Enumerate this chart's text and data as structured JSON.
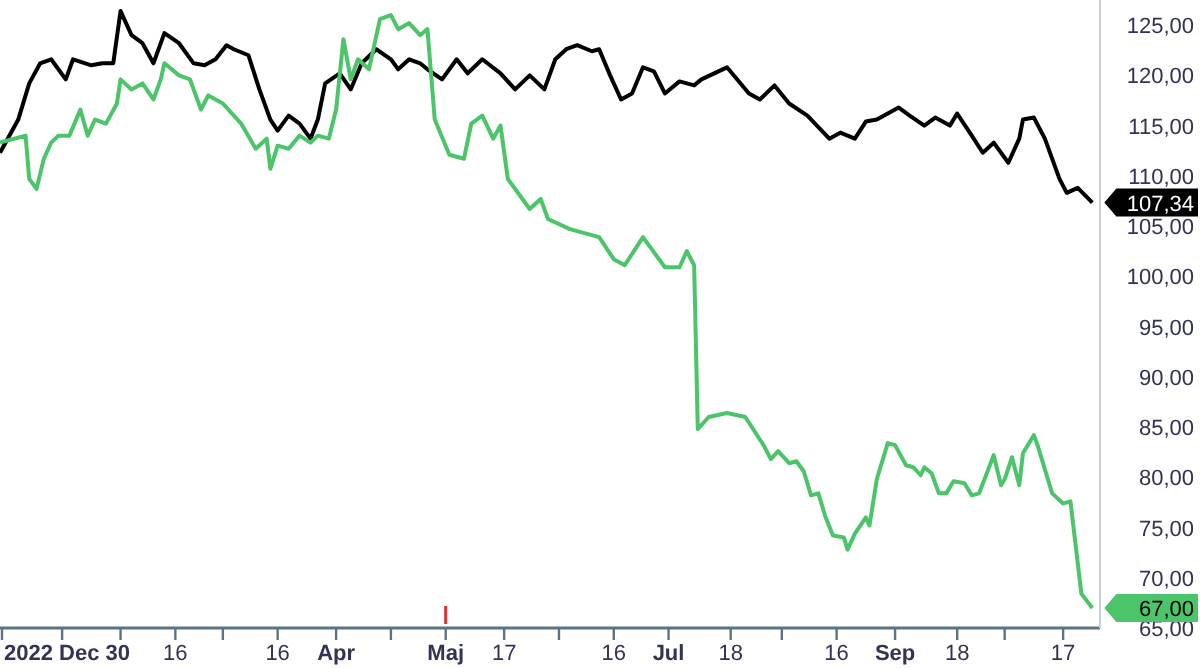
{
  "chart_data": {
    "type": "line",
    "xlim": [
      "2022-12-30",
      "2023-10-26"
    ],
    "ylim": [
      65,
      127.5
    ],
    "xticks": [
      {
        "value": "2022-12-30",
        "label": "2022 Dec 30"
      },
      {
        "value": "2023-01-16",
        "label": null
      },
      {
        "value": "2023-02-01",
        "label": null
      },
      {
        "value": "2023-02-16",
        "label": "16"
      },
      {
        "value": "2023-03-01",
        "label": null
      },
      {
        "value": "2023-03-16",
        "label": "16"
      },
      {
        "value": "2023-04-01",
        "label": "Apr"
      },
      {
        "value": "2023-04-16",
        "label": null
      },
      {
        "value": "2023-05-01",
        "label": "Maj"
      },
      {
        "value": "2023-05-17",
        "label": "17"
      },
      {
        "value": "2023-06-01",
        "label": null
      },
      {
        "value": "2023-06-16",
        "label": "16"
      },
      {
        "value": "2023-07-01",
        "label": "Jul"
      },
      {
        "value": "2023-07-18",
        "label": "18"
      },
      {
        "value": "2023-08-01",
        "label": null
      },
      {
        "value": "2023-08-16",
        "label": "16"
      },
      {
        "value": "2023-09-01",
        "label": "Sep"
      },
      {
        "value": "2023-09-18",
        "label": "18"
      },
      {
        "value": "2023-10-01",
        "label": null
      },
      {
        "value": "2023-10-17",
        "label": "17"
      }
    ],
    "yticks": [
      {
        "value": 65,
        "label": "65,00"
      },
      {
        "value": 70,
        "label": "70,00"
      },
      {
        "value": 75,
        "label": "75,00"
      },
      {
        "value": 80,
        "label": "80,00"
      },
      {
        "value": 85,
        "label": "85,00"
      },
      {
        "value": 90,
        "label": "90,00"
      },
      {
        "value": 95,
        "label": "95,00"
      },
      {
        "value": 100,
        "label": "100,00"
      },
      {
        "value": 105,
        "label": "105,00"
      },
      {
        "value": 110,
        "label": "110,00"
      },
      {
        "value": 115,
        "label": "115,00"
      },
      {
        "value": 120,
        "label": "120,00"
      },
      {
        "value": 125,
        "label": "125,00"
      }
    ],
    "grid": false,
    "marker": "none",
    "line_style": "solid",
    "series": [
      {
        "color": "#000000",
        "x": [
          "2022-12-30",
          "2023-01-04",
          "2023-01-07",
          "2023-01-10",
          "2023-01-13",
          "2023-01-17",
          "2023-01-19",
          "2023-01-24",
          "2023-01-27",
          "2023-01-30",
          "2023-02-01",
          "2023-02-04",
          "2023-02-07",
          "2023-02-10",
          "2023-02-13",
          "2023-02-17",
          "2023-02-21",
          "2023-02-24",
          "2023-02-27",
          "2023-03-02",
          "2023-03-04",
          "2023-03-08",
          "2023-03-11",
          "2023-03-14",
          "2023-03-16",
          "2023-03-19",
          "2023-03-22",
          "2023-03-25",
          "2023-03-27",
          "2023-03-29",
          "2023-04-02",
          "2023-04-05",
          "2023-04-08",
          "2023-04-12",
          "2023-04-16",
          "2023-04-18",
          "2023-04-21",
          "2023-04-24",
          "2023-04-26",
          "2023-04-30",
          "2023-05-04",
          "2023-05-07",
          "2023-05-11",
          "2023-05-16",
          "2023-05-20",
          "2023-05-24",
          "2023-05-28",
          "2023-05-31",
          "2023-06-03",
          "2023-06-06",
          "2023-06-10",
          "2023-06-12",
          "2023-06-15",
          "2023-06-18",
          "2023-06-21",
          "2023-06-24",
          "2023-06-27",
          "2023-06-30",
          "2023-07-04",
          "2023-07-08",
          "2023-07-10",
          "2023-07-17",
          "2023-07-23",
          "2023-07-26",
          "2023-07-30",
          "2023-08-03",
          "2023-08-08",
          "2023-08-14",
          "2023-08-17",
          "2023-08-21",
          "2023-08-24",
          "2023-08-27",
          "2023-09-02",
          "2023-09-05",
          "2023-09-09",
          "2023-09-12",
          "2023-09-16",
          "2023-09-18",
          "2023-09-22",
          "2023-09-25",
          "2023-09-28",
          "2023-10-02",
          "2023-10-05",
          "2023-10-06",
          "2023-10-09",
          "2023-10-12",
          "2023-10-16",
          "2023-10-18",
          "2023-10-21",
          "2023-10-25"
        ],
        "values": [
          112.3,
          115.6,
          119.2,
          121.2,
          121.6,
          119.6,
          121.6,
          121,
          121.2,
          121.2,
          126.4,
          124,
          123.2,
          121.2,
          124.2,
          123.2,
          121.2,
          121,
          121.6,
          123,
          122.6,
          122,
          118.6,
          115.6,
          114.5,
          116,
          115.2,
          113.7,
          115.6,
          119.2,
          120.2,
          118.6,
          121.2,
          122.6,
          121.6,
          120.6,
          121.6,
          121.2,
          120.6,
          119.6,
          121.6,
          120.2,
          121.6,
          120.2,
          118.6,
          120,
          118.6,
          121.6,
          122.6,
          123,
          122.4,
          122.6,
          120,
          117.6,
          118.2,
          120.8,
          120.4,
          118.2,
          119.4,
          119,
          119.6,
          120.8,
          118.2,
          117.6,
          119,
          117.2,
          116,
          113.7,
          114.3,
          113.7,
          115.4,
          115.6,
          116.8,
          116,
          115,
          115.8,
          115,
          116.2,
          114,
          112.3,
          113.3,
          111.3,
          113.7,
          115.6,
          115.8,
          113.7,
          109.7,
          108.3,
          108.8,
          107.34
        ]
      },
      {
        "color": "#4cc46a",
        "x": [
          "2022-12-30",
          "2023-01-06",
          "2023-01-07",
          "2023-01-09",
          "2023-01-11",
          "2023-01-13",
          "2023-01-15",
          "2023-01-18",
          "2023-01-21",
          "2023-01-23",
          "2023-01-25",
          "2023-01-28",
          "2023-01-31",
          "2023-02-01",
          "2023-02-04",
          "2023-02-07",
          "2023-02-10",
          "2023-02-12",
          "2023-02-13",
          "2023-02-17",
          "2023-02-20",
          "2023-02-23",
          "2023-02-25",
          "2023-03-01",
          "2023-03-06",
          "2023-03-10",
          "2023-03-13",
          "2023-03-14",
          "2023-03-16",
          "2023-03-19",
          "2023-03-22",
          "2023-03-25",
          "2023-03-27",
          "2023-03-30",
          "2023-04-01",
          "2023-04-03",
          "2023-04-05",
          "2023-04-07",
          "2023-04-10",
          "2023-04-13",
          "2023-04-16",
          "2023-04-18",
          "2023-04-21",
          "2023-04-24",
          "2023-04-26",
          "2023-04-28",
          "2023-05-02",
          "2023-05-06",
          "2023-05-08",
          "2023-05-11",
          "2023-05-14",
          "2023-05-16",
          "2023-05-18",
          "2023-05-24",
          "2023-05-27",
          "2023-05-29",
          "2023-06-04",
          "2023-06-12",
          "2023-06-16",
          "2023-06-19",
          "2023-06-24",
          "2023-06-30",
          "2023-07-04",
          "2023-07-06",
          "2023-07-08",
          "2023-07-09",
          "2023-07-12",
          "2023-07-17",
          "2023-07-22",
          "2023-07-27",
          "2023-07-29",
          "2023-07-31",
          "2023-08-03",
          "2023-08-05",
          "2023-08-07",
          "2023-08-09",
          "2023-08-11",
          "2023-08-13",
          "2023-08-15",
          "2023-08-18",
          "2023-08-19",
          "2023-08-21",
          "2023-08-24",
          "2023-08-25",
          "2023-08-27",
          "2023-08-30",
          "2023-09-01",
          "2023-09-04",
          "2023-09-06",
          "2023-09-08",
          "2023-09-09",
          "2023-09-11",
          "2023-09-13",
          "2023-09-15",
          "2023-09-17",
          "2023-09-20",
          "2023-09-22",
          "2023-09-24",
          "2023-09-28",
          "2023-09-30",
          "2023-10-01",
          "2023-10-03",
          "2023-10-05",
          "2023-10-06",
          "2023-10-09",
          "2023-10-10",
          "2023-10-12",
          "2023-10-14",
          "2023-10-17",
          "2023-10-19",
          "2023-10-22",
          "2023-10-25"
        ],
        "values": [
          113.3,
          114,
          109.7,
          108.7,
          111.7,
          113.3,
          114,
          114,
          116.6,
          114,
          115.6,
          115.2,
          117.2,
          119.6,
          118.6,
          119.2,
          117.6,
          119.6,
          121.2,
          120,
          119.6,
          116.6,
          118,
          117.2,
          115.2,
          112.7,
          113.7,
          110.7,
          113,
          112.7,
          114,
          113.3,
          114,
          113.7,
          116.6,
          123.6,
          119.6,
          121.6,
          120.6,
          125.6,
          126,
          124.6,
          125.2,
          124,
          124.6,
          115.6,
          112.1,
          111.7,
          115.2,
          116,
          113.7,
          115,
          109.7,
          106.7,
          107.7,
          105.7,
          104.7,
          103.9,
          101.7,
          101.1,
          103.9,
          100.9,
          100.9,
          102.5,
          101.1,
          84.8,
          86,
          86.4,
          86,
          83.2,
          81.8,
          82.6,
          81.4,
          81.6,
          80.6,
          78.2,
          78.4,
          76,
          74.2,
          74,
          72.8,
          74.4,
          76,
          75.2,
          79.8,
          83.4,
          83.2,
          81.2,
          81,
          80.2,
          81,
          80.4,
          78.4,
          78.4,
          79.6,
          79.4,
          78.2,
          78.4,
          82.2,
          79.2,
          79.8,
          82,
          79.2,
          82.4,
          84.2,
          83.2,
          80.8,
          78.4,
          77.4,
          77.6,
          68.4,
          67
        ]
      }
    ],
    "annotations": [
      {
        "text": "107,34",
        "x": "2023-10-25",
        "y": 107.34
      },
      {
        "text": "67,00",
        "x": "2023-10-25",
        "y": 67
      }
    ]
  }
}
